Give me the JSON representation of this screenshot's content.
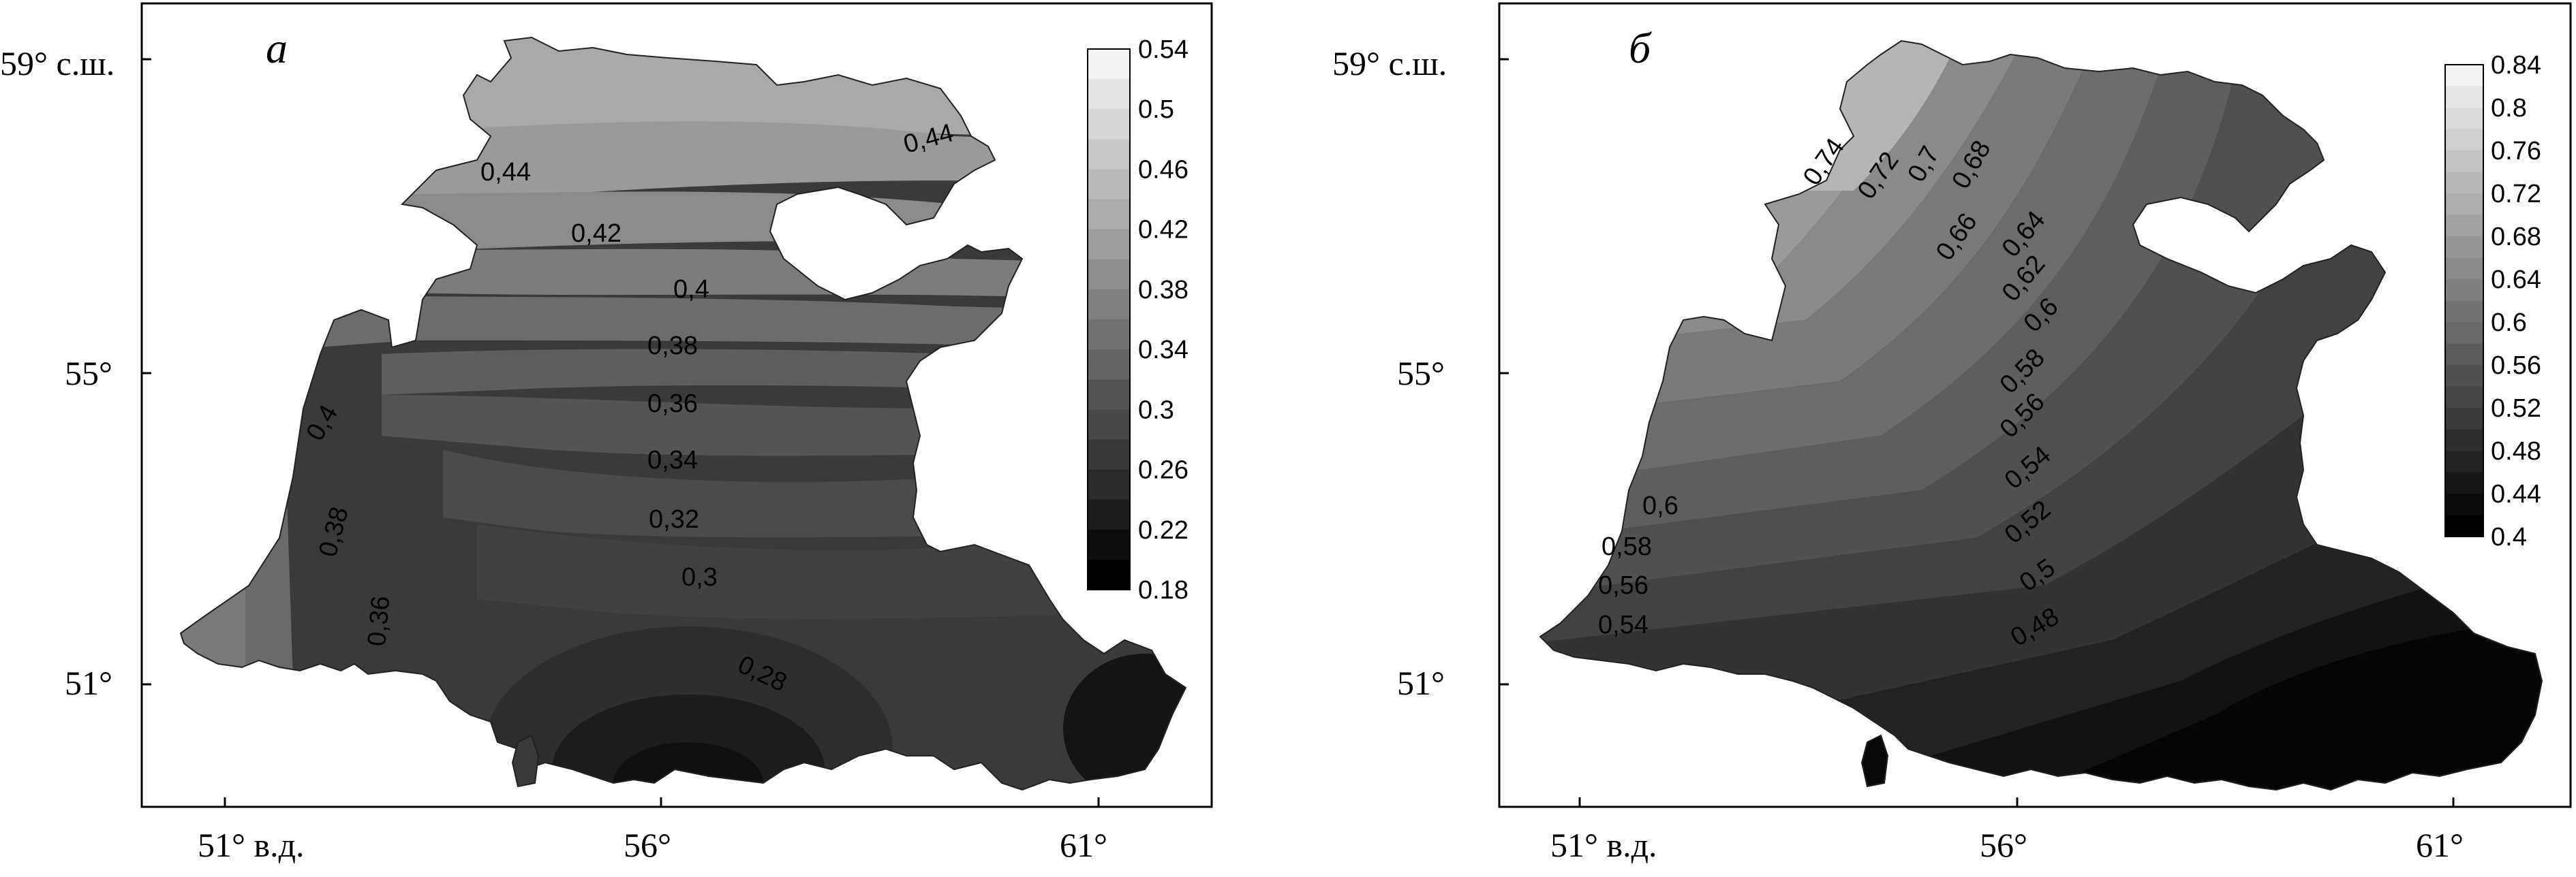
{
  "panels": [
    {
      "letter": "a",
      "lat_ticks": [
        {
          "label": "59° с.ш."
        },
        {
          "label": "55°"
        },
        {
          "label": "51°"
        }
      ],
      "lon_ticks": [
        {
          "label": "51° в.д."
        },
        {
          "label": "56°"
        },
        {
          "label": "61°"
        }
      ],
      "colorbar": {
        "labels": [
          "0.54",
          "0.5",
          "0.46",
          "0.42",
          "0.38",
          "0.34",
          "0.3",
          "0.26",
          "0.22",
          "0.18"
        ],
        "min": 0.18,
        "max": 0.54,
        "color_light": "#f2f2f2",
        "color_dark": "#000000"
      },
      "contour_labels": [
        "0,44",
        "0,44",
        "0,42",
        "0,4",
        "0,38",
        "0,36",
        "0,34",
        "0,32",
        "0,3",
        "0,28",
        "0,4",
        "0,38",
        "0,36"
      ]
    },
    {
      "letter": "б",
      "lat_ticks": [
        {
          "label": "59° с.ш."
        },
        {
          "label": "55°"
        },
        {
          "label": "51°"
        }
      ],
      "lon_ticks": [
        {
          "label": "51° в.д."
        },
        {
          "label": "56°"
        },
        {
          "label": "61°"
        }
      ],
      "colorbar": {
        "labels": [
          "0.84",
          "0.8",
          "0.76",
          "0.72",
          "0.68",
          "0.64",
          "0.6",
          "0.56",
          "0.52",
          "0.48",
          "0.44",
          "0.4"
        ],
        "min": 0.4,
        "max": 0.84,
        "color_light": "#f2f2f2",
        "color_dark": "#000000"
      },
      "contour_labels": [
        "0,74",
        "0,72",
        "0,7",
        "0,68",
        "0,66",
        "0,64",
        "0,62",
        "0,6",
        "0,58",
        "0,56",
        "0,54",
        "0,52",
        "0,5",
        "0,48",
        "0,6",
        "0,58",
        "0,56",
        "0,54"
      ]
    }
  ]
}
